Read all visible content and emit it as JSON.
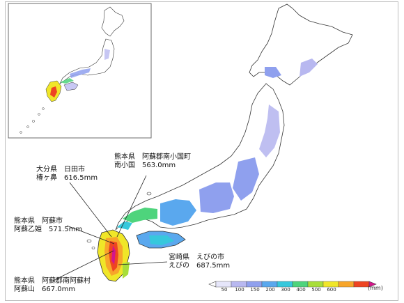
{
  "colors": {
    "legend": [
      "#e6e6fa",
      "#b8b8f0",
      "#8fa0ee",
      "#5aa8ee",
      "#36c8dc",
      "#4ed47c",
      "#a8de3a",
      "#f0e628",
      "#f7a52a",
      "#ee4422",
      "#d4148a"
    ],
    "outline": "#333333",
    "frame": "#bdbdbd"
  },
  "legend": {
    "ticks": [
      "50",
      "100",
      "150",
      "200",
      "300",
      "400",
      "500",
      "600"
    ],
    "unit": "(mm)"
  },
  "annotations": [
    {
      "id": "kumamoto-minamioguni",
      "line1": "熊本県　阿蘇郡南小国町",
      "line2": "南小国　563.0mm"
    },
    {
      "id": "oita-hita",
      "line1": "大分県　日田市",
      "line2": "椿ヶ鼻　616.5mm"
    },
    {
      "id": "kumamoto-aso",
      "line1": "熊本県　阿蘇市",
      "line2": "阿蘇乙姫　571.5mm"
    },
    {
      "id": "miyazaki-ebino",
      "line1": "宮崎県　えびの市",
      "line2": "えびの　687.5mm"
    },
    {
      "id": "kumamoto-minamiaso",
      "line1": "熊本県　阿蘇郡南阿蘇村",
      "line2": "阿蘇山　667.0mm"
    }
  ]
}
